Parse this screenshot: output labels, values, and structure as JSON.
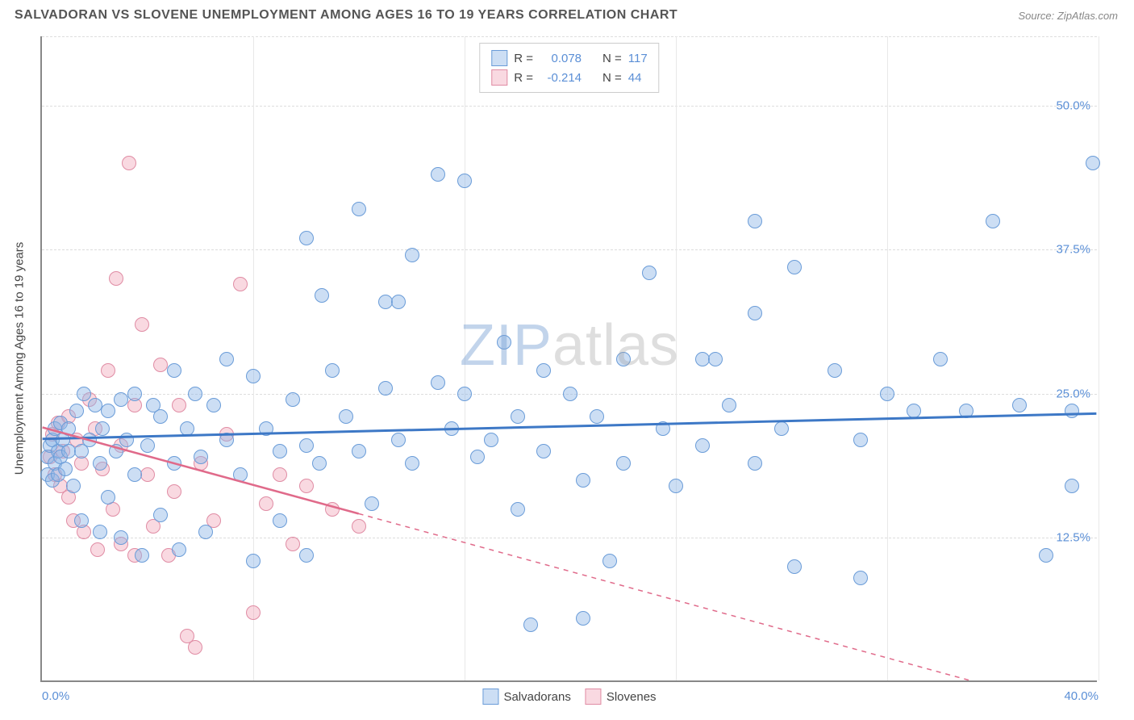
{
  "header": {
    "title": "SALVADORAN VS SLOVENE UNEMPLOYMENT AMONG AGES 16 TO 19 YEARS CORRELATION CHART",
    "source": "Source: ZipAtlas.com"
  },
  "chart": {
    "type": "scatter",
    "ylabel": "Unemployment Among Ages 16 to 19 years",
    "xlim": [
      0,
      40
    ],
    "ylim": [
      0,
      56
    ],
    "xtick_labels": [
      {
        "v": 0,
        "label": "0.0%"
      },
      {
        "v": 40,
        "label": "40.0%"
      }
    ],
    "ytick_labels": [
      {
        "v": 12.5,
        "label": "12.5%"
      },
      {
        "v": 25.0,
        "label": "25.0%"
      },
      {
        "v": 37.5,
        "label": "37.5%"
      },
      {
        "v": 50.0,
        "label": "50.0%"
      }
    ],
    "xgrid_ticks": [
      8,
      16,
      24,
      32,
      40
    ],
    "ygrid_ticks": [
      12.5,
      25.0,
      37.5,
      50.0,
      56
    ],
    "background_color": "#ffffff",
    "grid_color": "#dddddd",
    "axis_color": "#888888",
    "watermark": {
      "zip": "ZIP",
      "atlas": "atlas"
    },
    "series": {
      "salvadorans": {
        "label": "Salvadorans",
        "fill": "rgba(143, 181, 230, 0.45)",
        "stroke": "#6a9cd8",
        "line_color": "#3d78c6",
        "r_label": "R =",
        "r_value": "0.078",
        "n_label": "N =",
        "n_value": "117",
        "marker_radius": 9,
        "trend_y_at_x0": 21.0,
        "trend_y_at_xmax": 23.2,
        "points": [
          [
            0.2,
            18.0
          ],
          [
            0.2,
            19.5
          ],
          [
            0.3,
            20.5
          ],
          [
            0.4,
            17.5
          ],
          [
            0.4,
            21.0
          ],
          [
            0.5,
            19.0
          ],
          [
            0.5,
            22.0
          ],
          [
            0.6,
            18.0
          ],
          [
            0.6,
            20.0
          ],
          [
            0.7,
            22.5
          ],
          [
            0.7,
            19.5
          ],
          [
            0.8,
            21.0
          ],
          [
            0.9,
            18.5
          ],
          [
            1.0,
            20.0
          ],
          [
            1.0,
            22.0
          ],
          [
            1.2,
            17.0
          ],
          [
            1.3,
            23.5
          ],
          [
            1.5,
            14.0
          ],
          [
            1.5,
            20.0
          ],
          [
            1.6,
            25.0
          ],
          [
            1.8,
            21.0
          ],
          [
            2.0,
            24.0
          ],
          [
            2.2,
            19.0
          ],
          [
            2.2,
            13.0
          ],
          [
            2.3,
            22.0
          ],
          [
            2.5,
            23.5
          ],
          [
            2.5,
            16.0
          ],
          [
            2.8,
            20.0
          ],
          [
            3.0,
            24.5
          ],
          [
            3.0,
            12.5
          ],
          [
            3.2,
            21.0
          ],
          [
            3.5,
            25.0
          ],
          [
            3.5,
            18.0
          ],
          [
            3.8,
            11.0
          ],
          [
            4.0,
            20.5
          ],
          [
            4.2,
            24.0
          ],
          [
            4.5,
            23.0
          ],
          [
            4.5,
            14.5
          ],
          [
            5.0,
            27.0
          ],
          [
            5.0,
            19.0
          ],
          [
            5.2,
            11.5
          ],
          [
            5.5,
            22.0
          ],
          [
            5.8,
            25.0
          ],
          [
            6.0,
            19.5
          ],
          [
            6.2,
            13.0
          ],
          [
            6.5,
            24.0
          ],
          [
            7.0,
            21.0
          ],
          [
            7.0,
            28.0
          ],
          [
            7.5,
            18.0
          ],
          [
            8.0,
            10.5
          ],
          [
            8.0,
            26.5
          ],
          [
            8.5,
            22.0
          ],
          [
            9.0,
            20.0
          ],
          [
            9.0,
            14.0
          ],
          [
            9.5,
            24.5
          ],
          [
            10.0,
            38.5
          ],
          [
            10.0,
            20.5
          ],
          [
            10.0,
            11.0
          ],
          [
            10.6,
            33.5
          ],
          [
            10.5,
            19.0
          ],
          [
            11.0,
            27.0
          ],
          [
            11.5,
            23.0
          ],
          [
            12.0,
            41.0
          ],
          [
            12.0,
            20.0
          ],
          [
            12.5,
            15.5
          ],
          [
            13.0,
            33.0
          ],
          [
            13.0,
            25.5
          ],
          [
            13.5,
            21.0
          ],
          [
            13.5,
            33.0
          ],
          [
            14.0,
            19.0
          ],
          [
            14.0,
            37.0
          ],
          [
            15.0,
            26.0
          ],
          [
            15.0,
            44.0
          ],
          [
            15.5,
            22.0
          ],
          [
            16.0,
            43.5
          ],
          [
            16.0,
            25.0
          ],
          [
            16.5,
            19.5
          ],
          [
            17.0,
            21.0
          ],
          [
            17.5,
            29.5
          ],
          [
            18.0,
            23.0
          ],
          [
            18.0,
            15.0
          ],
          [
            18.5,
            5.0
          ],
          [
            19.0,
            27.0
          ],
          [
            19.0,
            20.0
          ],
          [
            20.5,
            17.5
          ],
          [
            20.0,
            25.0
          ],
          [
            20.5,
            5.5
          ],
          [
            21.0,
            23.0
          ],
          [
            21.5,
            10.5
          ],
          [
            22.0,
            28.0
          ],
          [
            22.0,
            19.0
          ],
          [
            23.0,
            35.5
          ],
          [
            23.5,
            22.0
          ],
          [
            24.0,
            17.0
          ],
          [
            25.0,
            28.0
          ],
          [
            25.0,
            20.5
          ],
          [
            25.5,
            28.0
          ],
          [
            26.0,
            24.0
          ],
          [
            27.0,
            32.0
          ],
          [
            27.0,
            19.0
          ],
          [
            27.0,
            40.0
          ],
          [
            28.5,
            36.0
          ],
          [
            28.0,
            22.0
          ],
          [
            28.5,
            10.0
          ],
          [
            30.0,
            27.0
          ],
          [
            31.0,
            21.0
          ],
          [
            31.0,
            9.0
          ],
          [
            32.0,
            25.0
          ],
          [
            33.0,
            23.5
          ],
          [
            34.0,
            28.0
          ],
          [
            35.0,
            23.5
          ],
          [
            36.0,
            40.0
          ],
          [
            37.0,
            24.0
          ],
          [
            38.0,
            11.0
          ],
          [
            39.0,
            17.0
          ],
          [
            39.0,
            23.5
          ],
          [
            39.8,
            45.0
          ]
        ]
      },
      "slovenes": {
        "label": "Slovenes",
        "fill": "rgba(240, 160, 180, 0.40)",
        "stroke": "#e08ca4",
        "line_color": "#e06a8a",
        "r_label": "R =",
        "r_value": "-0.214",
        "n_label": "N =",
        "n_value": "44",
        "marker_radius": 9,
        "trend_y_at_x0": 22.0,
        "trend_y_at_xmax": -3.0,
        "trend_solid_until_x": 12.0,
        "points": [
          [
            0.3,
            19.5
          ],
          [
            0.4,
            21.5
          ],
          [
            0.5,
            18.0
          ],
          [
            0.6,
            22.5
          ],
          [
            0.7,
            17.0
          ],
          [
            0.8,
            20.0
          ],
          [
            1.0,
            16.0
          ],
          [
            1.0,
            23.0
          ],
          [
            1.2,
            14.0
          ],
          [
            1.3,
            21.0
          ],
          [
            1.5,
            19.0
          ],
          [
            1.6,
            13.0
          ],
          [
            1.8,
            24.5
          ],
          [
            2.0,
            22.0
          ],
          [
            2.1,
            11.5
          ],
          [
            2.3,
            18.5
          ],
          [
            2.5,
            27.0
          ],
          [
            2.7,
            15.0
          ],
          [
            2.8,
            35.0
          ],
          [
            3.0,
            12.0
          ],
          [
            3.0,
            20.5
          ],
          [
            3.3,
            45.0
          ],
          [
            3.5,
            24.0
          ],
          [
            3.5,
            11.0
          ],
          [
            3.8,
            31.0
          ],
          [
            4.0,
            18.0
          ],
          [
            4.2,
            13.5
          ],
          [
            4.5,
            27.5
          ],
          [
            4.8,
            11.0
          ],
          [
            5.0,
            16.5
          ],
          [
            5.2,
            24.0
          ],
          [
            5.5,
            4.0
          ],
          [
            5.8,
            3.0
          ],
          [
            6.0,
            19.0
          ],
          [
            6.5,
            14.0
          ],
          [
            7.0,
            21.5
          ],
          [
            7.5,
            34.5
          ],
          [
            8.0,
            6.0
          ],
          [
            8.5,
            15.5
          ],
          [
            9.0,
            18.0
          ],
          [
            9.5,
            12.0
          ],
          [
            10.0,
            17.0
          ],
          [
            11.0,
            15.0
          ],
          [
            12.0,
            13.5
          ]
        ]
      }
    }
  }
}
